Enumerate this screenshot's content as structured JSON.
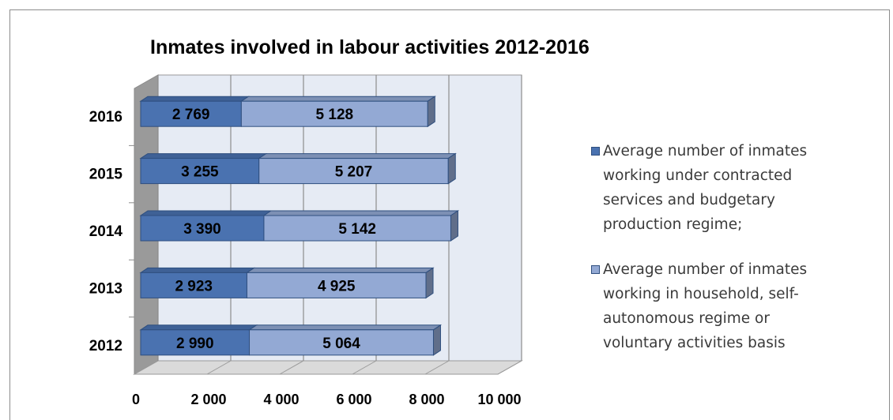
{
  "chart_data": {
    "type": "bar",
    "orientation": "horizontal",
    "stacked": true,
    "style": "3d",
    "title": "Inmates involved in labour activities 2012-2016",
    "categories": [
      "2012",
      "2013",
      "2014",
      "2015",
      "2016"
    ],
    "series": [
      {
        "name": "Average number of inmates working under contracted services and budgetary production regime;",
        "values": [
          2990,
          2923,
          3390,
          3255,
          2769
        ],
        "labels": [
          "2 990",
          "2 923",
          "3 390",
          "3 255",
          "2 769"
        ],
        "color": "#4a72b0"
      },
      {
        "name": "Average number of inmates working in household, self-autonomous regime or voluntary activities basis",
        "values": [
          5064,
          4925,
          5142,
          5207,
          5128
        ],
        "labels": [
          "5 064",
          "4 925",
          "5 142",
          "5 207",
          "5 128"
        ],
        "color": "#93a9d4"
      }
    ],
    "xlim": [
      0,
      10000
    ],
    "xticks": [
      0,
      2000,
      4000,
      6000,
      8000,
      10000
    ],
    "xtick_labels": [
      "0",
      "2 000",
      "4 000",
      "6 000",
      "8 000",
      "10 000"
    ],
    "grid": true,
    "legend_position": "right"
  },
  "legend": {
    "items": [
      {
        "lines": [
          "Average number of inmates",
          "working under contracted",
          "services and budgetary",
          "production regime;"
        ],
        "color": "#4a72b0"
      },
      {
        "lines": [
          "Average number of inmates",
          "working in household, self-",
          "autonomous regime or",
          "voluntary activities basis"
        ],
        "color": "#93a9d4"
      }
    ]
  }
}
